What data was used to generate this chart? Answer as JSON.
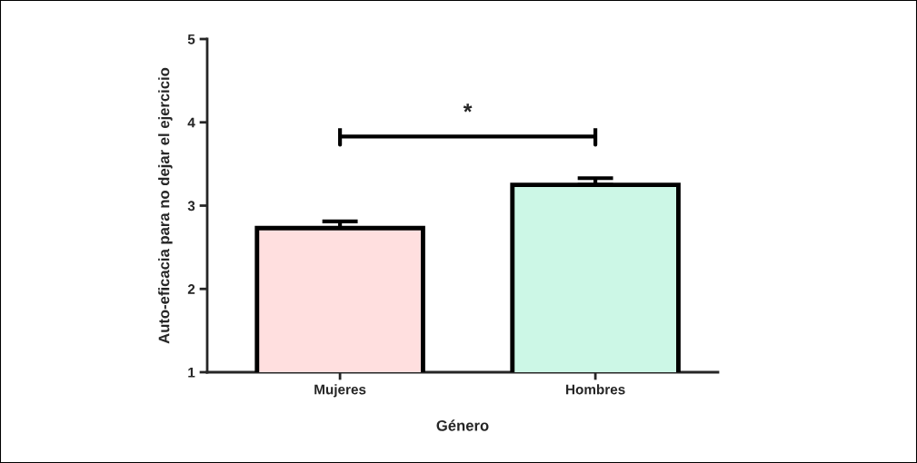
{
  "chart_data": {
    "type": "bar",
    "xlabel": "Género",
    "ylabel": "Auto-eficacia para no dejar el ejercicio",
    "categories": [
      "Mujeres",
      "Hombres"
    ],
    "values": [
      2.73,
      3.25
    ],
    "errors": [
      0.08,
      0.08
    ],
    "colors": [
      "#ffdfdf",
      "#ccf7e6"
    ],
    "ylim": [
      1,
      5
    ],
    "yticks": [
      1,
      2,
      3,
      4,
      5
    ],
    "grid": false,
    "annotations": [
      "*"
    ]
  }
}
